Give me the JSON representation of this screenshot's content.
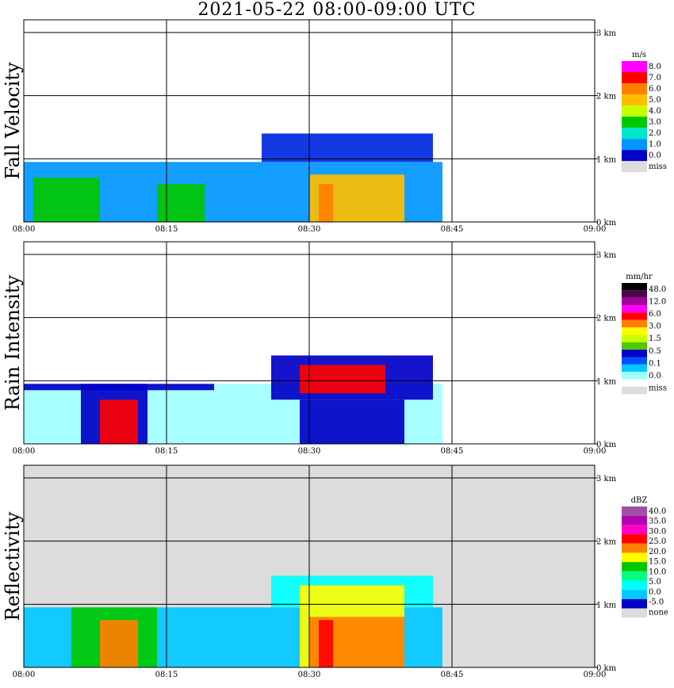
{
  "title": "2021-05-22   08:00-09:00 UTC",
  "chart_data": [
    {
      "type": "heatmap",
      "ylabel": "Fall Velocity",
      "x_ticks": [
        "08:00",
        "08:15",
        "08:30",
        "08:45",
        "09:00"
      ],
      "y_ticks": [
        "0 km",
        "1 km",
        "2 km",
        "3 km"
      ],
      "xlim_minutes": [
        0,
        60
      ],
      "ylim_km": [
        0,
        3.2
      ],
      "legend": {
        "unit": "m/s",
        "labels": [
          "8.0",
          "7.0",
          "6.0",
          "5.0",
          "4.0",
          "3.0",
          "2.0",
          "1.0",
          "0.0",
          "miss"
        ],
        "colors": [
          "#ff00ff",
          "#ff0000",
          "#ff7f00",
          "#ffbf00",
          "#c8ff00",
          "#00c800",
          "#00e6c8",
          "#0096ff",
          "#0000c8",
          "#dcdcdc"
        ]
      },
      "regions": [
        {
          "name": "low-band",
          "t0": 0,
          "t1": 44,
          "h0": 0.0,
          "h1": 0.95,
          "color": "#0096ff"
        },
        {
          "name": "upper-echo",
          "t0": 25,
          "t1": 43,
          "h0": 0.95,
          "h1": 1.4,
          "color": "#0028e0"
        },
        {
          "name": "green-core-1",
          "t0": 1,
          "t1": 8,
          "h0": 0.0,
          "h1": 0.7,
          "color": "#00c800"
        },
        {
          "name": "green-core-2",
          "t0": 14,
          "t1": 19,
          "h0": 0.0,
          "h1": 0.6,
          "color": "#00c800"
        },
        {
          "name": "yellow-core",
          "t0": 30,
          "t1": 40,
          "h0": 0.0,
          "h1": 0.75,
          "color": "#ffbf00"
        },
        {
          "name": "orange-core",
          "t0": 31,
          "t1": 32.5,
          "h0": 0.0,
          "h1": 0.6,
          "color": "#ff7f00"
        }
      ]
    },
    {
      "type": "heatmap",
      "ylabel": "Rain Intensity",
      "x_ticks": [
        "08:00",
        "08:15",
        "08:30",
        "08:45",
        "09:00"
      ],
      "y_ticks": [
        "0 km",
        "1 km",
        "2 km",
        "3 km"
      ],
      "xlim_minutes": [
        0,
        60
      ],
      "ylim_km": [
        0,
        3.2
      ],
      "legend": {
        "unit": "mm/hr",
        "labels": [
          "48.0",
          "12.0",
          "6.0",
          "3.0",
          "1.5",
          "0.5",
          "0.1",
          "0.0",
          "miss"
        ],
        "colors": [
          "#000000",
          "#500050",
          "#a000a0",
          "#ff00ff",
          "#ff0000",
          "#ff7f00",
          "#ffff00",
          "#c8ff00",
          "#50c800",
          "#0000c8",
          "#0050ff",
          "#00c8ff",
          "#a0ffff",
          "#ffffff",
          "#dcdcdc"
        ]
      },
      "regions": [
        {
          "name": "light-rain",
          "t0": 0,
          "t1": 44,
          "h0": 0.0,
          "h1": 0.95,
          "color": "#a0ffff"
        },
        {
          "name": "melting-band",
          "t0": 0,
          "t1": 20,
          "h0": 0.85,
          "h1": 0.95,
          "color": "#0000c8"
        },
        {
          "name": "rain-core-1",
          "t0": 6,
          "t1": 13,
          "h0": 0.0,
          "h1": 0.95,
          "color": "#0000c8"
        },
        {
          "name": "rain-core-1-hot",
          "t0": 8,
          "t1": 12,
          "h0": 0.0,
          "h1": 0.7,
          "color": "#ff0000"
        },
        {
          "name": "upper-core",
          "t0": 26,
          "t1": 43,
          "h0": 0.7,
          "h1": 1.4,
          "color": "#0000c8"
        },
        {
          "name": "upper-core-hot",
          "t0": 29,
          "t1": 38,
          "h0": 0.8,
          "h1": 1.25,
          "color": "#ff0000"
        },
        {
          "name": "lower-core-2",
          "t0": 29,
          "t1": 40,
          "h0": 0.0,
          "h1": 0.7,
          "color": "#0000c8"
        }
      ]
    },
    {
      "type": "heatmap",
      "ylabel": "Reflectivity",
      "x_ticks": [
        "08:00",
        "08:15",
        "08:30",
        "08:45",
        "09:00"
      ],
      "y_ticks": [
        "0 km",
        "1 km",
        "2 km",
        "3 km"
      ],
      "xlim_minutes": [
        0,
        60
      ],
      "ylim_km": [
        0,
        3.2
      ],
      "legend": {
        "unit": "dBZ",
        "labels": [
          "40.0",
          "35.0",
          "30.0",
          "25.0",
          "20.0",
          "15.0",
          "10.0",
          "5.0",
          "0.0",
          "-5.0",
          "none"
        ],
        "colors": [
          "#a050a0",
          "#b400b4",
          "#ff00c8",
          "#ff0000",
          "#ff7f00",
          "#ffff00",
          "#00c800",
          "#00ff80",
          "#00ffff",
          "#00c8ff",
          "#0000c8",
          "#dcdcdc"
        ]
      },
      "regions": [
        {
          "name": "echo-base",
          "t0": 0,
          "t1": 44,
          "h0": 0.0,
          "h1": 0.95,
          "color": "#00c8ff"
        },
        {
          "name": "upper-echo",
          "t0": 26,
          "t1": 43,
          "h0": 0.95,
          "h1": 1.45,
          "color": "#00ffff"
        },
        {
          "name": "green-core-1",
          "t0": 5,
          "t1": 14,
          "h0": 0.0,
          "h1": 0.95,
          "color": "#00c800"
        },
        {
          "name": "orange-core-1",
          "t0": 8,
          "t1": 12,
          "h0": 0.0,
          "h1": 0.75,
          "color": "#ff7f00"
        },
        {
          "name": "yellow-core-2",
          "t0": 29,
          "t1": 40,
          "h0": 0.0,
          "h1": 1.3,
          "color": "#ffff00"
        },
        {
          "name": "orange-core-2",
          "t0": 30,
          "t1": 40,
          "h0": 0.0,
          "h1": 0.8,
          "color": "#ff7f00"
        },
        {
          "name": "red-core-2",
          "t0": 31,
          "t1": 32.5,
          "h0": 0.0,
          "h1": 0.75,
          "color": "#ff0000"
        }
      ]
    }
  ]
}
